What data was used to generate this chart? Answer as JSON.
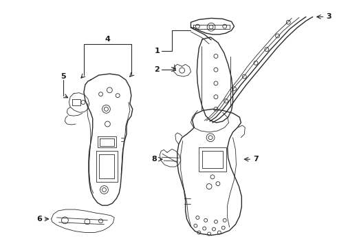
{
  "background_color": "#ffffff",
  "line_color": "#2a2a2a",
  "fig_width": 4.9,
  "fig_height": 3.6,
  "dpi": 100,
  "lw_main": 1.0,
  "lw_thin": 0.6,
  "lw_thick": 1.4,
  "callout_fs": 8,
  "callout_color": "#1a1a1a"
}
